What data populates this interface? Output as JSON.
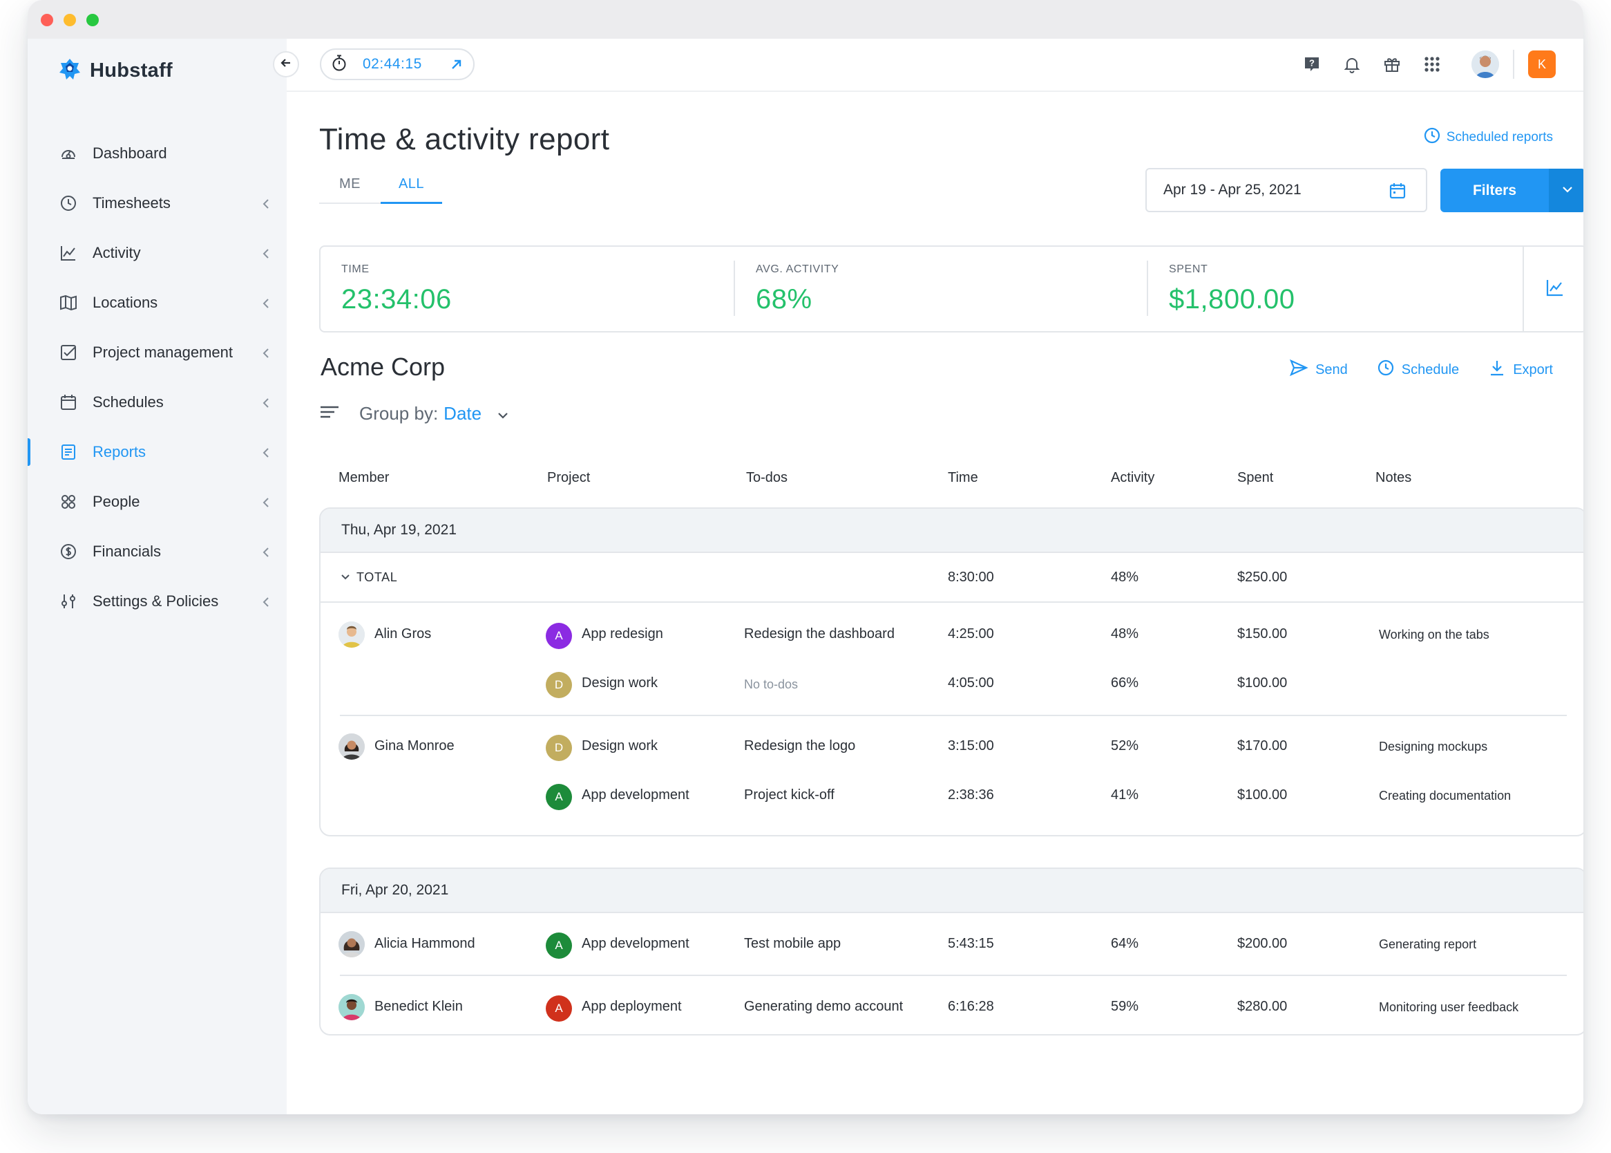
{
  "app": {
    "name": "Hubstaff",
    "timer": "02:44:15",
    "org_badge": "K"
  },
  "sidebar": {
    "items": [
      {
        "label": "Dashboard",
        "icon": "dashboard-icon",
        "has_chevron": false,
        "active": false
      },
      {
        "label": "Timesheets",
        "icon": "clock-icon",
        "has_chevron": true,
        "active": false
      },
      {
        "label": "Activity",
        "icon": "activity-chart-icon",
        "has_chevron": true,
        "active": false
      },
      {
        "label": "Locations",
        "icon": "map-icon",
        "has_chevron": true,
        "active": false
      },
      {
        "label": "Project management",
        "icon": "checkbox-icon",
        "has_chevron": true,
        "active": false
      },
      {
        "label": "Schedules",
        "icon": "calendar-icon",
        "has_chevron": true,
        "active": false
      },
      {
        "label": "Reports",
        "icon": "report-icon",
        "has_chevron": true,
        "active": true
      },
      {
        "label": "People",
        "icon": "people-icon",
        "has_chevron": true,
        "active": false
      },
      {
        "label": "Financials",
        "icon": "dollar-icon",
        "has_chevron": true,
        "active": false
      },
      {
        "label": "Settings & Policies",
        "icon": "sliders-icon",
        "has_chevron": true,
        "active": false
      }
    ]
  },
  "header": {
    "title": "Time & activity report",
    "scheduled_reports": "Scheduled reports",
    "tabs": [
      "ME",
      "ALL"
    ],
    "active_tab": "ALL",
    "date_range": "Apr 19 - Apr 25, 2021",
    "filters_label": "Filters"
  },
  "stats": {
    "time_label": "TIME",
    "time_value": "23:34:06",
    "activity_label": "AVG. ACTIVITY",
    "activity_value": "68%",
    "spent_label": "SPENT",
    "spent_value": "$1,800.00"
  },
  "report": {
    "org_name": "Acme Corp",
    "actions": {
      "send": "Send",
      "schedule": "Schedule",
      "export": "Export"
    },
    "group_by_label": "Group by:",
    "group_by_value": "Date",
    "columns": [
      "Member",
      "Project",
      "To-dos",
      "Time",
      "Activity",
      "Spent",
      "Notes"
    ]
  },
  "groups": [
    {
      "date": "Thu, Apr 19, 2021",
      "total": {
        "label": "TOTAL",
        "time": "8:30:00",
        "activity": "48%",
        "spent": "$250.00"
      },
      "rows": [
        {
          "member": "Alin Gros",
          "project": "App redesign",
          "project_letter": "A",
          "project_color": "#8b2be2",
          "todo": "Redesign the dashboard",
          "time": "4:25:00",
          "activity": "48%",
          "spent": "$150.00",
          "notes": "Working on the tabs"
        },
        {
          "member": "",
          "project": "Design work",
          "project_letter": "D",
          "project_color": "#c2ad5f",
          "todo": "No to-dos",
          "time": "4:05:00",
          "activity": "66%",
          "spent": "$100.00",
          "notes": ""
        },
        {
          "member": "Gina Monroe",
          "project": "Design work",
          "project_letter": "D",
          "project_color": "#c2ad5f",
          "todo": "Redesign the logo",
          "time": "3:15:00",
          "activity": "52%",
          "spent": "$170.00",
          "notes": "Designing mockups"
        },
        {
          "member": "",
          "project": "App development",
          "project_letter": "A",
          "project_color": "#1d8b3a",
          "todo": "Project kick-off",
          "time": "2:38:36",
          "activity": "41%",
          "spent": "$100.00",
          "notes": "Creating documentation"
        }
      ]
    },
    {
      "date": "Fri, Apr 20, 2021",
      "rows": [
        {
          "member": "Alicia Hammond",
          "project": "App development",
          "project_letter": "A",
          "project_color": "#1d8b3a",
          "todo": "Test mobile app",
          "time": "5:43:15",
          "activity": "64%",
          "spent": "$200.00",
          "notes": "Generating report"
        },
        {
          "member": "Benedict Klein",
          "project": "App deployment",
          "project_letter": "A",
          "project_color": "#d0311c",
          "todo": "Generating demo account",
          "time": "6:16:28",
          "activity": "59%",
          "spent": "$280.00",
          "notes": "Monitoring user feedback"
        }
      ]
    }
  ],
  "colors": {
    "accent": "#2196f3",
    "positive": "#24c16b",
    "sidebar_bg": "#f3f5f8"
  }
}
